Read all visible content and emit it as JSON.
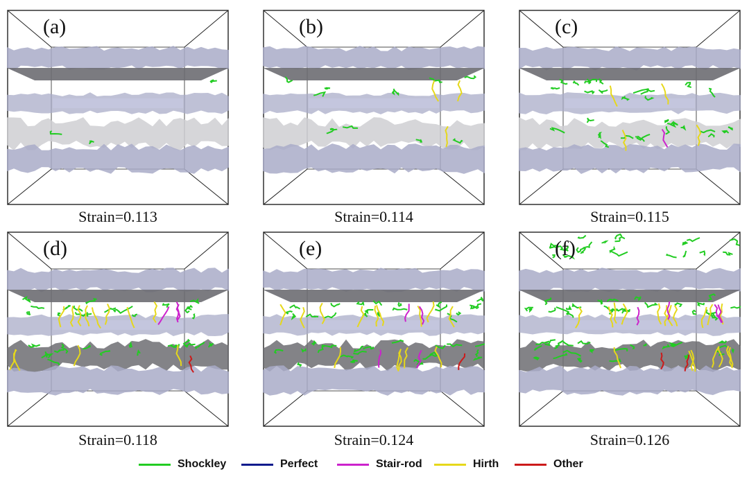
{
  "panels": [
    {
      "label": "(a)",
      "caption": "Strain=0.113",
      "level": 0
    },
    {
      "label": "(b)",
      "caption": "Strain=0.114",
      "level": 1
    },
    {
      "label": "(c)",
      "caption": "Strain=0.115",
      "level": 2
    },
    {
      "label": "(d)",
      "caption": "Strain=0.118",
      "level": 3
    },
    {
      "label": "(e)",
      "caption": "Strain=0.124",
      "level": 4
    },
    {
      "label": "(f)",
      "caption": "Strain=0.126",
      "level": 5
    }
  ],
  "legend": [
    {
      "name": "Shockley",
      "color": "#22cc22"
    },
    {
      "name": "Perfect",
      "color": "#0a1a8c"
    },
    {
      "name": "Stair-rod",
      "color": "#cc22cc"
    },
    {
      "name": "Hirth",
      "color": "#e6d81a"
    },
    {
      "name": "Other",
      "color": "#cc1a1a"
    }
  ],
  "colors": {
    "layer": "#a9acc8",
    "layer_light": "#c4c6df",
    "surface_dark": "#6d6d72",
    "surface_light": "#cfcfd2",
    "frame": "#222222"
  }
}
